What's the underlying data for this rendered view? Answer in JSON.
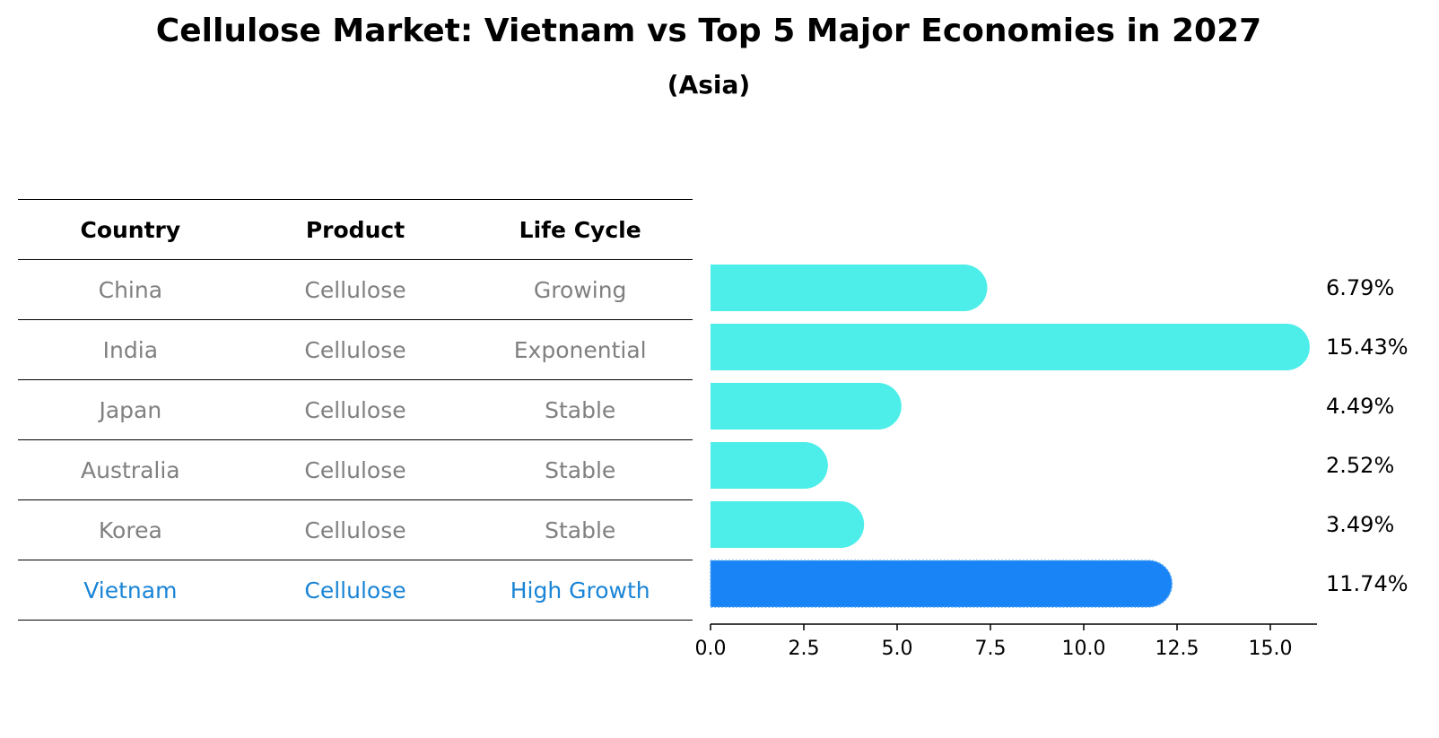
{
  "title": "Cellulose Market: Vietnam vs Top 5 Major Economies in 2027",
  "subtitle": "(Asia)",
  "table": {
    "headers": [
      "Country",
      "Product",
      "Life Cycle"
    ],
    "rows": [
      [
        "China",
        "Cellulose",
        "Growing"
      ],
      [
        "India",
        "Cellulose",
        "Exponential"
      ],
      [
        "Japan",
        "Cellulose",
        "Stable"
      ],
      [
        "Australia",
        "Cellulose",
        "Stable"
      ],
      [
        "Korea",
        "Cellulose",
        "Stable"
      ],
      [
        "Vietnam",
        "Cellulose",
        "High Growth"
      ]
    ]
  },
  "colors": {
    "bar": "#4deeea",
    "highlight": "#1884f5",
    "highlight_text": "#1a84d6",
    "muted_text": "#808080"
  },
  "chart_data": {
    "type": "bar",
    "orientation": "horizontal",
    "title": "Cellulose Market: Vietnam vs Top 5 Major Economies in 2027",
    "subtitle": "(Asia)",
    "categories": [
      "China",
      "India",
      "Japan",
      "Australia",
      "Korea",
      "Vietnam"
    ],
    "values": [
      6.79,
      15.43,
      4.49,
      2.52,
      3.49,
      11.74
    ],
    "value_labels": [
      "6.79%",
      "15.43%",
      "4.49%",
      "2.52%",
      "3.49%",
      "11.74%"
    ],
    "highlight": "Vietnam",
    "xlim": [
      0,
      16.25
    ],
    "xticks": [
      0.0,
      2.5,
      5.0,
      7.5,
      10.0,
      12.5,
      15.0
    ],
    "xtick_labels": [
      "0.0",
      "2.5",
      "5.0",
      "7.5",
      "10.0",
      "12.5",
      "15.0"
    ],
    "xlabel": "",
    "ylabel": ""
  }
}
